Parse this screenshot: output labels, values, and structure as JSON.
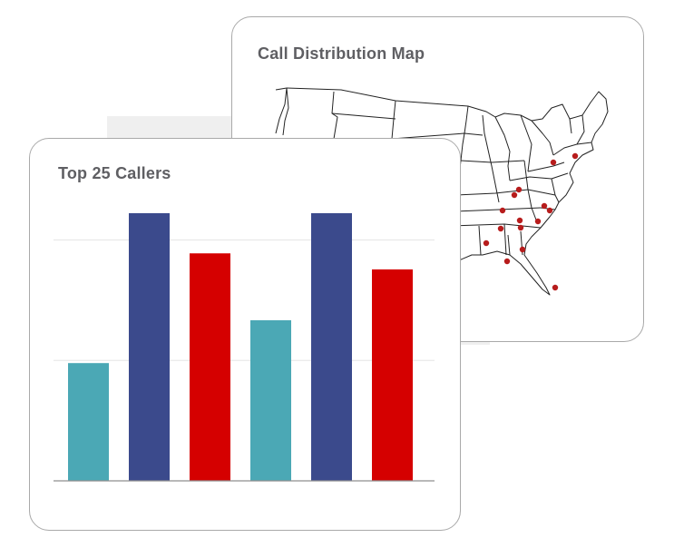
{
  "map_panel": {
    "title": "Call Distribution Map",
    "marker_color": "#b71c1c"
  },
  "chart_panel": {
    "title": "Top 25 Callers"
  },
  "chart_data": {
    "type": "bar",
    "title": "Top 25 Callers",
    "categories": [
      "",
      "",
      "",
      "",
      "",
      ""
    ],
    "values": [
      44,
      100,
      85,
      60,
      100,
      79
    ],
    "colors": [
      "#4ba8b5",
      "#3b4a8c",
      "#d50000",
      "#4ba8b5",
      "#3b4a8c",
      "#d50000"
    ],
    "ylim": [
      0,
      100
    ],
    "gridlines": [
      45,
      90
    ],
    "xlabel": "",
    "ylabel": ""
  }
}
